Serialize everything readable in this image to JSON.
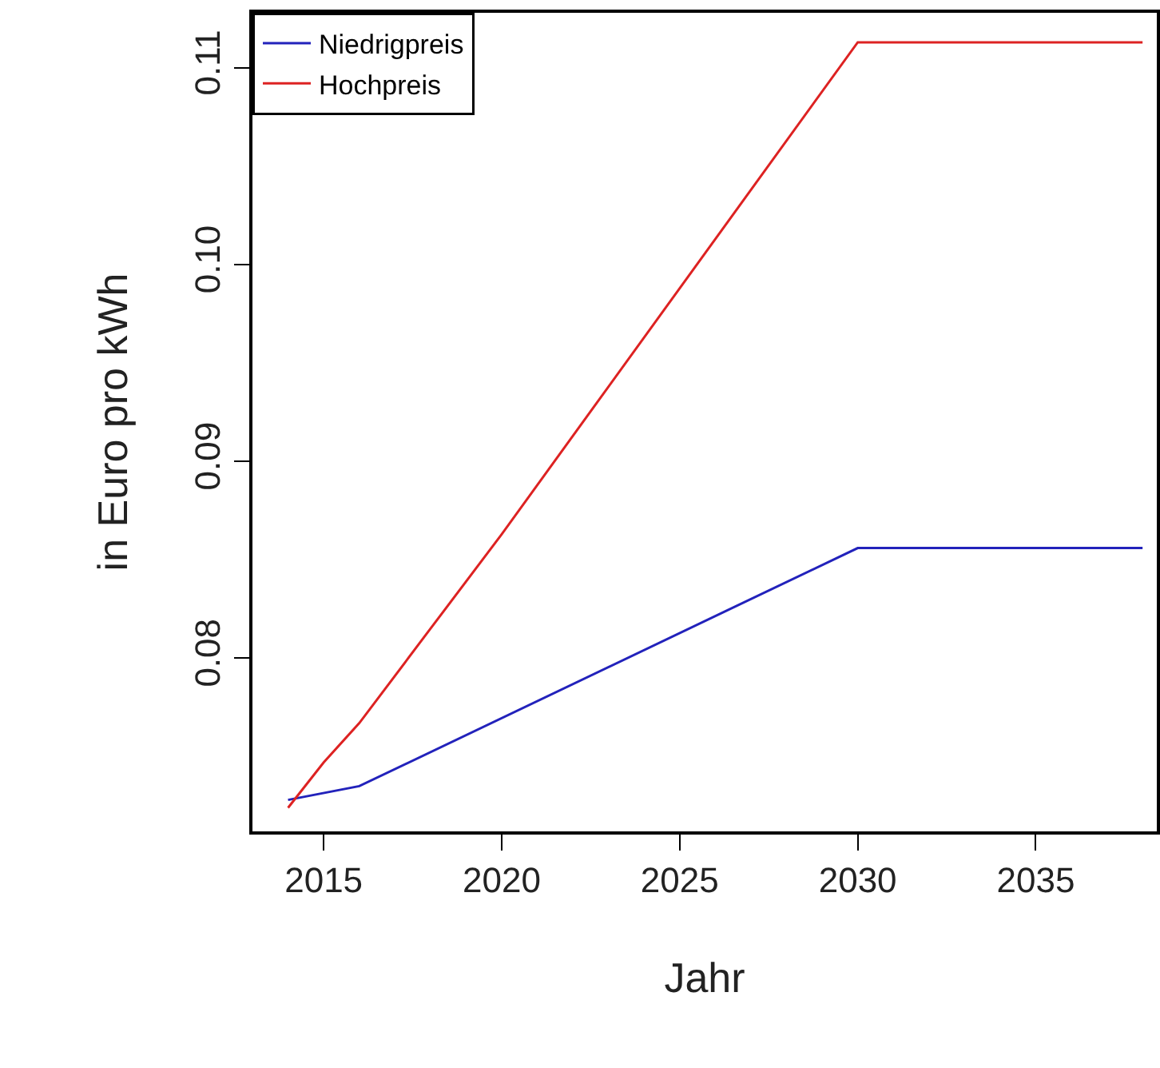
{
  "chart_data": {
    "type": "line",
    "xlabel": "Jahr",
    "ylabel": "in Euro pro kWh",
    "series": [
      {
        "name": "Niedrigpreis",
        "color": "#2222bb",
        "x": [
          2014,
          2016,
          2030,
          2038
        ],
        "values": [
          0.0728,
          0.0735,
          0.0856,
          0.0856
        ]
      },
      {
        "name": "Hochpreis",
        "color": "#dd2222",
        "x": [
          2014,
          2015,
          2016,
          2018,
          2020,
          2025,
          2030,
          2038
        ],
        "values": [
          0.0724,
          0.0747,
          0.0767,
          0.0815,
          0.0863,
          0.0988,
          0.1113,
          0.1113
        ]
      }
    ],
    "xlim": [
      2013,
      2038.4
    ],
    "xticks": [
      2015,
      2020,
      2025,
      2030,
      2035
    ],
    "ylim": [
      0.0712,
      0.1128
    ],
    "yticks": [
      0.08,
      0.09,
      {
        "value": 0.1,
        "label": "0.10"
      },
      0.11
    ],
    "grid": false,
    "legend": "top left",
    "marker": "none",
    "line_style": "solid"
  }
}
